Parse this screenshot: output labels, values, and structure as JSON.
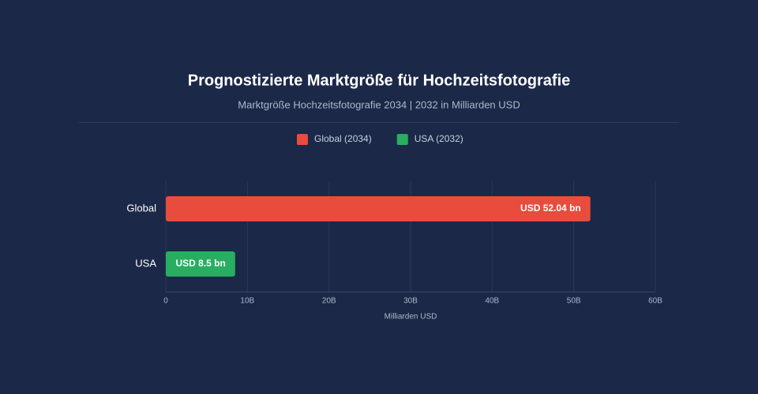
{
  "chart_data": {
    "type": "bar",
    "orientation": "horizontal",
    "title": "Prognostizierte Marktgröße für Hochzeitsfotografie",
    "subtitle": "Marktgröße Hochzeitsfotografie 2034 | 2032 in Milliarden USD",
    "x_label": "Milliarden USD",
    "categories": [
      "Global",
      "USA"
    ],
    "series": [
      {
        "name": "Global (2034)",
        "color": "#e74c3c",
        "values": [
          52.04,
          null
        ],
        "value_labels": [
          "USD 52.04 bn",
          null
        ]
      },
      {
        "name": "USA (2032)",
        "color": "#27ae60",
        "values": [
          null,
          8.5
        ],
        "value_labels": [
          null,
          "USD 8.5 bn"
        ]
      }
    ],
    "xlim": [
      0,
      60
    ],
    "xticks": [
      0,
      {
        "value": 10,
        "label": "10B"
      },
      {
        "value": 20,
        "label": "20B"
      },
      {
        "value": 30,
        "label": "30B"
      },
      {
        "value": 40,
        "label": "40B"
      },
      {
        "value": 50,
        "label": "50B"
      },
      {
        "value": 60,
        "label": "60B"
      }
    ],
    "grid": true
  }
}
